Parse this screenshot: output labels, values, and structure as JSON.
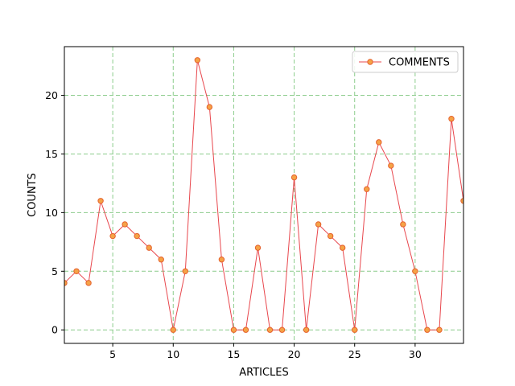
{
  "chart_data": {
    "type": "line",
    "title": "",
    "xlabel": "ARTICLES",
    "ylabel": "COUNTS",
    "xlim": [
      1,
      34
    ],
    "ylim": [
      -1.15,
      24.15
    ],
    "xticks": [
      5,
      10,
      15,
      20,
      25,
      30
    ],
    "yticks": [
      0,
      5,
      10,
      15,
      20
    ],
    "grid": true,
    "legend_position": "top-right",
    "series": [
      {
        "name": "COMMENTS",
        "line_color": "#e8474d",
        "marker_fill": "#f5a347",
        "marker_edge": "#e5602c",
        "x": [
          1,
          2,
          3,
          4,
          5,
          6,
          7,
          8,
          9,
          10,
          11,
          12,
          13,
          14,
          15,
          16,
          17,
          18,
          19,
          20,
          21,
          22,
          23,
          24,
          25,
          26,
          27,
          28,
          29,
          30,
          31,
          32,
          33,
          34
        ],
        "y": [
          4,
          5,
          4,
          11,
          8,
          9,
          8,
          7,
          6,
          0,
          5,
          23,
          19,
          6,
          0,
          0,
          7,
          0,
          0,
          13,
          0,
          9,
          8,
          7,
          0,
          12,
          16,
          14,
          9,
          5,
          0,
          0,
          18,
          11
        ]
      }
    ]
  },
  "colors": {
    "grid": "#8ccc8c",
    "axes": "#000000"
  }
}
